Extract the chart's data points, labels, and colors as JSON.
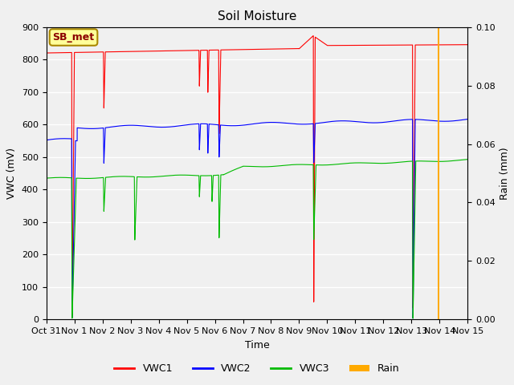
{
  "title": "Soil Moisture",
  "xlabel": "Time",
  "ylabel_left": "VWC (mV)",
  "ylabel_right": "Rain (mm)",
  "ylim_left": [
    0,
    900
  ],
  "ylim_right": [
    0.0,
    0.1
  ],
  "yticks_left": [
    0,
    100,
    200,
    300,
    400,
    500,
    600,
    700,
    800,
    900
  ],
  "yticks_right": [
    0.0,
    0.02,
    0.04,
    0.06,
    0.08,
    0.1
  ],
  "xtick_labels": [
    "Oct 31",
    "Nov 1",
    "Nov 2",
    "Nov 3",
    "Nov 4",
    "Nov 5",
    "Nov 6",
    "Nov 7",
    "Nov 8",
    "Nov 9",
    "Nov 10",
    "Nov 11",
    "Nov 12",
    "Nov 13",
    "Nov 14",
    "Nov 15"
  ],
  "background_color": "#f0f0f0",
  "plot_bg_color": "#f0f0f0",
  "grid_color": "#ffffff",
  "colors": {
    "VWC1": "#ff0000",
    "VWC2": "#0000ff",
    "VWC3": "#00bb00",
    "Rain": "#ffaa00"
  },
  "legend_label_box": "SB_met",
  "legend_label_box_color": "#ffff99",
  "legend_label_box_border": "#aa8800"
}
